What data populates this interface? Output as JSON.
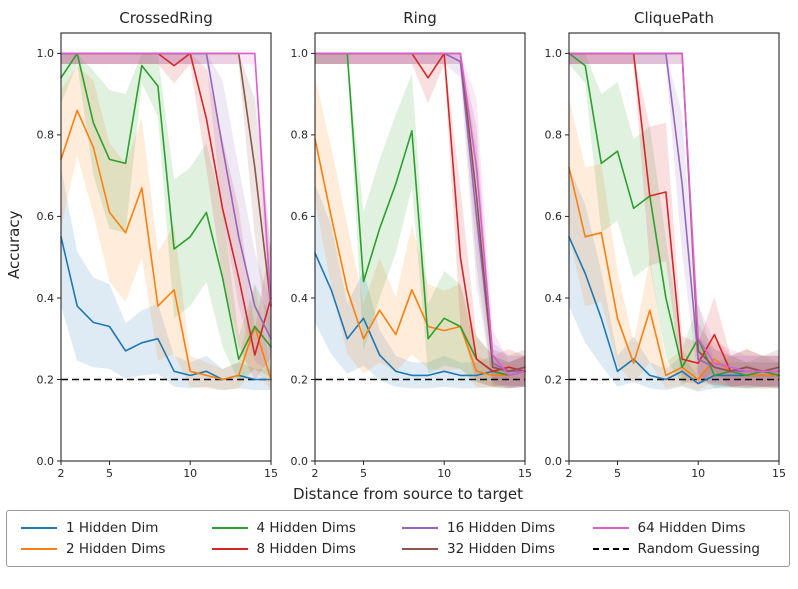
{
  "figure": {
    "xlabel": "Distance from source to target",
    "ylabel": "Accuracy"
  },
  "legend": {
    "entries": [
      {
        "label": "1 Hidden Dim",
        "color": "#1f77b4",
        "dash": false
      },
      {
        "label": "2 Hidden Dims",
        "color": "#ff7f0e",
        "dash": false
      },
      {
        "label": "4 Hidden Dims",
        "color": "#2ca02c",
        "dash": false
      },
      {
        "label": "8 Hidden Dims",
        "color": "#d62728",
        "dash": false
      },
      {
        "label": "16 Hidden Dims",
        "color": "#9467bd",
        "dash": false
      },
      {
        "label": "32 Hidden Dims",
        "color": "#8c564b",
        "dash": false
      },
      {
        "label": "64 Hidden Dims",
        "color": "#db5fd0",
        "dash": false
      },
      {
        "label": "Random Guessing",
        "color": "#000000",
        "dash": true
      }
    ]
  },
  "chart_data": [
    {
      "type": "line",
      "title": "CrossedRing",
      "xlabel": "Distance from source to target",
      "ylabel": "Accuracy",
      "x": [
        2,
        3,
        4,
        5,
        6,
        7,
        8,
        9,
        10,
        11,
        12,
        13,
        14,
        15
      ],
      "xlim": [
        2,
        15
      ],
      "ylim": [
        0.0,
        1.05
      ],
      "xticks": [
        2,
        5,
        10,
        15
      ],
      "yticks": [
        0.0,
        0.2,
        0.4,
        0.6,
        0.8,
        1.0
      ],
      "baseline": {
        "label": "Random Guessing",
        "y": 0.2,
        "style": "dashed"
      },
      "band_opacity": 0.15,
      "series": [
        {
          "name": "1 Hidden Dim",
          "color": "#1f77b4",
          "values": [
            0.55,
            0.38,
            0.34,
            0.33,
            0.27,
            0.29,
            0.3,
            0.22,
            0.21,
            0.22,
            0.2,
            0.21,
            0.2,
            0.2
          ]
        },
        {
          "name": "2 Hidden Dims",
          "color": "#ff7f0e",
          "values": [
            0.74,
            0.86,
            0.77,
            0.61,
            0.56,
            0.67,
            0.38,
            0.42,
            0.22,
            0.21,
            0.2,
            0.21,
            0.33,
            0.2
          ]
        },
        {
          "name": "4 Hidden Dims",
          "color": "#2ca02c",
          "values": [
            0.94,
            1.0,
            0.83,
            0.74,
            0.73,
            0.97,
            0.92,
            0.52,
            0.55,
            0.61,
            0.45,
            0.25,
            0.33,
            0.28
          ]
        },
        {
          "name": "8 Hidden Dims",
          "color": "#d62728",
          "values": [
            1.0,
            1.0,
            1.0,
            1.0,
            1.0,
            1.0,
            1.0,
            0.97,
            1.0,
            0.84,
            0.62,
            0.45,
            0.26,
            0.4
          ]
        },
        {
          "name": "16 Hidden Dims",
          "color": "#9467bd",
          "values": [
            1.0,
            1.0,
            1.0,
            1.0,
            1.0,
            1.0,
            1.0,
            1.0,
            1.0,
            1.0,
            0.77,
            0.55,
            0.38,
            0.3
          ]
        },
        {
          "name": "32 Hidden Dims",
          "color": "#8c564b",
          "values": [
            1.0,
            1.0,
            1.0,
            1.0,
            1.0,
            1.0,
            1.0,
            1.0,
            1.0,
            1.0,
            1.0,
            1.0,
            0.72,
            0.38
          ]
        },
        {
          "name": "64 Hidden Dims",
          "color": "#db5fd0",
          "values": [
            1.0,
            1.0,
            1.0,
            1.0,
            1.0,
            1.0,
            1.0,
            1.0,
            1.0,
            1.0,
            1.0,
            1.0,
            1.0,
            0.38
          ]
        }
      ]
    },
    {
      "type": "line",
      "title": "Ring",
      "xlabel": "Distance from source to target",
      "ylabel": "Accuracy",
      "x": [
        2,
        3,
        4,
        5,
        6,
        7,
        8,
        9,
        10,
        11,
        12,
        13,
        14,
        15
      ],
      "xlim": [
        2,
        15
      ],
      "ylim": [
        0.0,
        1.05
      ],
      "xticks": [
        2,
        5,
        10,
        15
      ],
      "yticks": [
        0.0,
        0.2,
        0.4,
        0.6,
        0.8,
        1.0
      ],
      "baseline": {
        "label": "Random Guessing",
        "y": 0.2,
        "style": "dashed"
      },
      "band_opacity": 0.15,
      "series": [
        {
          "name": "1 Hidden Dim",
          "color": "#1f77b4",
          "values": [
            0.51,
            0.42,
            0.3,
            0.35,
            0.26,
            0.22,
            0.21,
            0.21,
            0.22,
            0.21,
            0.21,
            0.22,
            0.21,
            0.22
          ]
        },
        {
          "name": "2 Hidden Dims",
          "color": "#ff7f0e",
          "values": [
            0.79,
            0.6,
            0.42,
            0.3,
            0.37,
            0.31,
            0.42,
            0.33,
            0.32,
            0.33,
            0.22,
            0.21,
            0.21,
            0.22
          ]
        },
        {
          "name": "4 Hidden Dims",
          "color": "#2ca02c",
          "values": [
            1.0,
            1.0,
            1.0,
            0.44,
            0.57,
            0.68,
            0.81,
            0.3,
            0.35,
            0.33,
            0.25,
            0.22,
            0.21,
            0.22
          ]
        },
        {
          "name": "8 Hidden Dims",
          "color": "#d62728",
          "values": [
            1.0,
            1.0,
            1.0,
            1.0,
            1.0,
            1.0,
            1.0,
            0.94,
            1.0,
            0.5,
            0.25,
            0.22,
            0.23,
            0.22
          ]
        },
        {
          "name": "16 Hidden Dims",
          "color": "#9467bd",
          "values": [
            1.0,
            1.0,
            1.0,
            1.0,
            1.0,
            1.0,
            1.0,
            1.0,
            1.0,
            0.98,
            0.6,
            0.24,
            0.22,
            0.22
          ]
        },
        {
          "name": "32 Hidden Dims",
          "color": "#8c564b",
          "values": [
            1.0,
            1.0,
            1.0,
            1.0,
            1.0,
            1.0,
            1.0,
            1.0,
            1.0,
            1.0,
            0.65,
            0.23,
            0.22,
            0.23
          ]
        },
        {
          "name": "64 Hidden Dims",
          "color": "#db5fd0",
          "values": [
            1.0,
            1.0,
            1.0,
            1.0,
            1.0,
            1.0,
            1.0,
            1.0,
            1.0,
            1.0,
            0.72,
            0.26,
            0.21,
            0.22
          ]
        }
      ]
    },
    {
      "type": "line",
      "title": "CliquePath",
      "xlabel": "Distance from source to target",
      "ylabel": "Accuracy",
      "x": [
        2,
        3,
        4,
        5,
        6,
        7,
        8,
        9,
        10,
        11,
        12,
        13,
        14,
        15
      ],
      "xlim": [
        2,
        15
      ],
      "ylim": [
        0.0,
        1.05
      ],
      "xticks": [
        2,
        5,
        10,
        15
      ],
      "yticks": [
        0.0,
        0.2,
        0.4,
        0.6,
        0.8,
        1.0
      ],
      "baseline": {
        "label": "Random Guessing",
        "y": 0.2,
        "style": "dashed"
      },
      "band_opacity": 0.15,
      "series": [
        {
          "name": "1 Hidden Dim",
          "color": "#1f77b4",
          "values": [
            0.55,
            0.46,
            0.35,
            0.22,
            0.25,
            0.21,
            0.2,
            0.22,
            0.19,
            0.21,
            0.21,
            0.21,
            0.21,
            0.21
          ]
        },
        {
          "name": "2 Hidden Dims",
          "color": "#ff7f0e",
          "values": [
            0.72,
            0.55,
            0.56,
            0.35,
            0.24,
            0.37,
            0.21,
            0.23,
            0.2,
            0.25,
            0.22,
            0.21,
            0.21,
            0.21
          ]
        },
        {
          "name": "4 Hidden Dims",
          "color": "#2ca02c",
          "values": [
            1.0,
            0.97,
            0.73,
            0.76,
            0.62,
            0.65,
            0.4,
            0.23,
            0.3,
            0.21,
            0.22,
            0.21,
            0.22,
            0.21
          ]
        },
        {
          "name": "8 Hidden Dims",
          "color": "#d62728",
          "values": [
            1.0,
            1.0,
            1.0,
            1.0,
            1.0,
            0.65,
            0.66,
            0.25,
            0.24,
            0.31,
            0.22,
            0.23,
            0.22,
            0.22
          ]
        },
        {
          "name": "16 Hidden Dims",
          "color": "#9467bd",
          "values": [
            1.0,
            1.0,
            1.0,
            1.0,
            1.0,
            1.0,
            1.0,
            0.68,
            0.25,
            0.23,
            0.22,
            0.22,
            0.22,
            0.22
          ]
        },
        {
          "name": "32 Hidden Dims",
          "color": "#8c564b",
          "values": [
            1.0,
            1.0,
            1.0,
            1.0,
            1.0,
            1.0,
            1.0,
            1.0,
            0.27,
            0.23,
            0.22,
            0.23,
            0.22,
            0.23
          ]
        },
        {
          "name": "64 Hidden Dims",
          "color": "#db5fd0",
          "values": [
            1.0,
            1.0,
            1.0,
            1.0,
            1.0,
            1.0,
            1.0,
            1.0,
            0.3,
            0.24,
            0.23,
            0.22,
            0.22,
            0.22
          ]
        }
      ]
    }
  ]
}
